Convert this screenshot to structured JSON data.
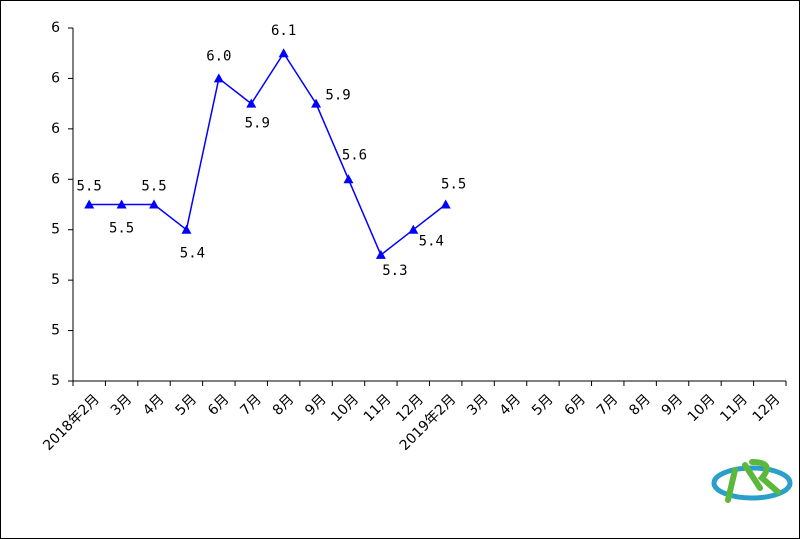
{
  "chart_data": {
    "type": "line",
    "categories": [
      "2018年2月",
      "3月",
      "4月",
      "5月",
      "6月",
      "7月",
      "8月",
      "9月",
      "10月",
      "11月",
      "12月",
      "2019年2月",
      "3月",
      "4月",
      "5月",
      "6月",
      "7月",
      "8月",
      "9月",
      "10月",
      "11月",
      "12月"
    ],
    "series": [
      {
        "color": "#0000ff",
        "values": [
          5.5,
          5.5,
          5.5,
          5.4,
          6.0,
          5.9,
          6.1,
          5.9,
          5.6,
          5.3,
          5.4,
          5.5,
          null,
          null,
          null,
          null,
          null,
          null,
          null,
          null,
          null,
          null
        ],
        "value_labels": [
          "5.5",
          "5.5",
          "5.5",
          "5.4",
          "6.0",
          "5.9",
          "6.1",
          "5.9",
          "5.6",
          "5.3",
          "5.4",
          "5.5",
          null,
          null,
          null,
          null,
          null,
          null,
          null,
          null,
          null,
          null
        ]
      }
    ],
    "ylim": [
      4.8,
      6.2
    ],
    "yticks": [
      {
        "value": 4.8,
        "label": "5"
      },
      {
        "value": 5.0,
        "label": "5"
      },
      {
        "value": 5.2,
        "label": "5"
      },
      {
        "value": 5.4,
        "label": "5"
      },
      {
        "value": 5.6,
        "label": "6"
      },
      {
        "value": 5.8,
        "label": "6"
      },
      {
        "value": 6.0,
        "label": "6"
      },
      {
        "value": 6.2,
        "label": "6"
      }
    ]
  }
}
